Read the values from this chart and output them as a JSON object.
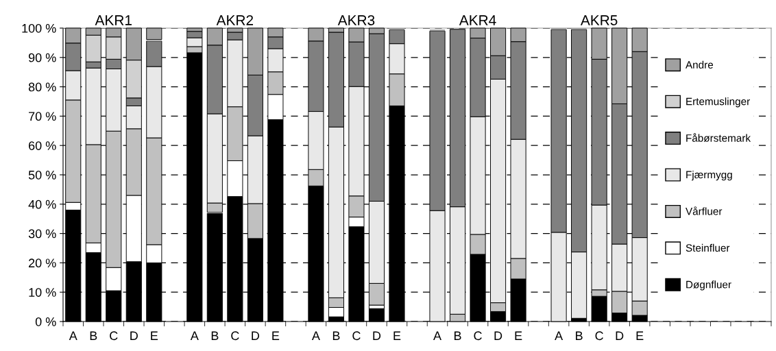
{
  "chart_data": {
    "type": "bar",
    "stacked": true,
    "categories": [
      "A",
      "B",
      "C",
      "D",
      "E",
      null,
      "A",
      "B",
      "C",
      "D",
      "E",
      null,
      "A",
      "B",
      "C",
      "D",
      "E",
      null,
      "A",
      "B",
      "C",
      "D",
      "E",
      null,
      "A",
      "B",
      "C",
      "D",
      "E",
      null
    ],
    "series": [
      {
        "name": "Døgnfluer",
        "color": "#000000",
        "values": [
          38.0,
          23.5,
          10.5,
          20.4,
          20.0,
          null,
          91.6,
          36.9,
          42.6,
          28.3,
          68.8,
          null,
          46.2,
          1.6,
          32.3,
          4.4,
          73.5,
          null,
          null,
          0,
          22.9,
          3.4,
          14.5,
          null,
          0,
          1.1,
          8.6,
          2.9,
          2.1,
          null
        ]
      },
      {
        "name": "Steinfluer",
        "color": "#ffffff",
        "values": [
          2.6,
          3.3,
          7.9,
          22.6,
          6.2,
          null,
          0,
          0.3,
          12.2,
          0,
          8.6,
          null,
          0,
          3.2,
          3.3,
          1.2,
          0,
          null,
          0,
          0,
          0,
          0,
          0,
          null,
          0,
          0,
          0,
          0,
          0,
          null
        ]
      },
      {
        "name": "Vårfluer",
        "color": "#c0c0c0",
        "values": [
          34.9,
          33.5,
          46.5,
          22.7,
          36.4,
          null,
          2.1,
          3.2,
          18.4,
          11.9,
          7.7,
          null,
          5.6,
          3.3,
          7.2,
          7.4,
          10.9,
          null,
          0,
          2.5,
          6.8,
          3.0,
          7.0,
          null,
          0,
          0,
          2.2,
          7.4,
          4.9,
          null
        ]
      },
      {
        "name": "Fjærmygg",
        "color": "#e8e8e8",
        "values": [
          10.0,
          26.1,
          21.2,
          7.8,
          24.3,
          null,
          3.0,
          30.4,
          22.8,
          23.1,
          7.9,
          null,
          19.8,
          58.2,
          37.3,
          28.0,
          10.3,
          null,
          37.8,
          36.6,
          40.1,
          76.2,
          40.6,
          null,
          30.4,
          22.6,
          28.9,
          16.1,
          21.6,
          null
        ]
      },
      {
        "name": "Fåbørstemark",
        "color": "#808080",
        "values": [
          9.4,
          2.1,
          3.3,
          2.7,
          8.7,
          null,
          2.2,
          23.4,
          2.6,
          20.7,
          4.0,
          null,
          24.0,
          32.3,
          15.2,
          57.1,
          4.7,
          null,
          61.2,
          60.5,
          26.8,
          8.0,
          33.3,
          null,
          69.1,
          75.8,
          49.7,
          47.8,
          63.4,
          null
        ]
      },
      {
        "name": "Ertemuslinger",
        "color": "#d0d0d0",
        "values": [
          0,
          9.1,
          7.6,
          12.9,
          0.5,
          null,
          0,
          0,
          0,
          0,
          0,
          null,
          0,
          0,
          0,
          0,
          0,
          null,
          0,
          0,
          0,
          0,
          0,
          null,
          0,
          0,
          0,
          0,
          0,
          null
        ]
      },
      {
        "name": "Andre",
        "color": "#a0a0a0",
        "values": [
          5.1,
          2.4,
          3.0,
          10.9,
          3.9,
          null,
          1.1,
          5.8,
          1.4,
          16.0,
          3.0,
          null,
          4.4,
          1.4,
          4.7,
          1.9,
          0.6,
          null,
          0.5,
          null,
          3.4,
          9.4,
          4.6,
          null,
          0.5,
          0.5,
          10.6,
          25.8,
          8.0,
          null
        ]
      }
    ],
    "ylim": [
      0,
      100
    ],
    "yticks": [
      {
        "value": 0,
        "label": "0 %"
      },
      {
        "value": 10,
        "label": "10 %"
      },
      {
        "value": 20,
        "label": "20 %"
      },
      {
        "value": 30,
        "label": "30 %"
      },
      {
        "value": 40,
        "label": "40 %"
      },
      {
        "value": 50,
        "label": "50 %"
      },
      {
        "value": 60,
        "label": "60 %"
      },
      {
        "value": 70,
        "label": "70 %"
      },
      {
        "value": 80,
        "label": "80 %"
      },
      {
        "value": 90,
        "label": "90 %"
      },
      {
        "value": 100,
        "label": "100 %"
      }
    ],
    "grid": "y",
    "legend": "right",
    "annotations": [
      "AKR1",
      "AKR2",
      "AKR3",
      "AKR4",
      "AKR5"
    ]
  }
}
